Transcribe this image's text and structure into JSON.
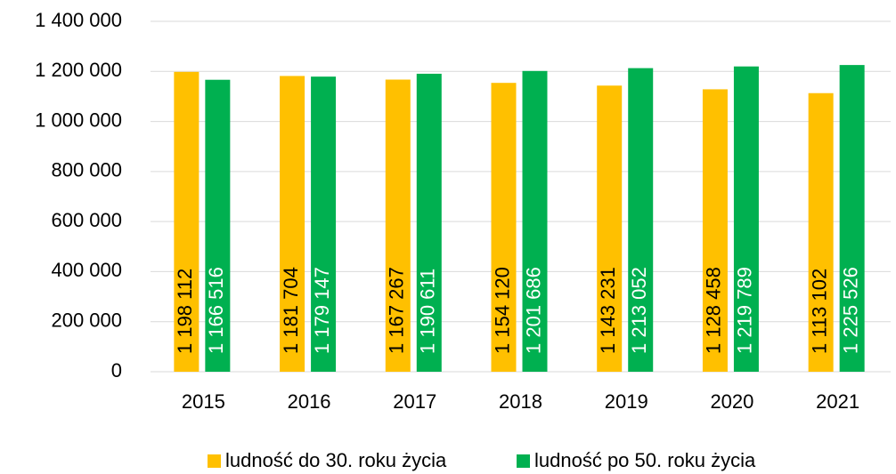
{
  "chart_data": {
    "type": "bar",
    "categories": [
      "2015",
      "2016",
      "2017",
      "2018",
      "2019",
      "2020",
      "2021"
    ],
    "series": [
      {
        "name": "ludność do 30. roku życia",
        "color": "#FFC000",
        "values": [
          1198112,
          1181704,
          1167267,
          1154120,
          1143231,
          1128458,
          1113102
        ],
        "value_labels": [
          "1 198 112",
          "1 181 704",
          "1 167 267",
          "1 154 120",
          "1 143 231",
          "1 128 458",
          "1 113 102"
        ]
      },
      {
        "name": "ludność po 50. roku życia",
        "color": "#00B050",
        "values": [
          1166516,
          1179147,
          1190611,
          1201686,
          1213052,
          1219789,
          1225526
        ],
        "value_labels": [
          "1 166 516",
          "1 179 147",
          "1 190 611",
          "1 201 686",
          "1 213 052",
          "1 219 789",
          "1 225 526"
        ]
      }
    ],
    "ylim": [
      0,
      1400000
    ],
    "yticks": [
      0,
      {
        "value": 200000,
        "label": "200 000"
      },
      {
        "value": 400000,
        "label": "400 000"
      },
      {
        "value": 600000,
        "label": "600 000"
      },
      {
        "value": 800000,
        "label": "800 000"
      },
      {
        "value": 1000000,
        "label": "1 000 000"
      },
      {
        "value": 1200000,
        "label": "1 200 000"
      },
      {
        "value": 1400000,
        "label": "1 400 000"
      }
    ],
    "grid": true,
    "legend": "bottom"
  }
}
